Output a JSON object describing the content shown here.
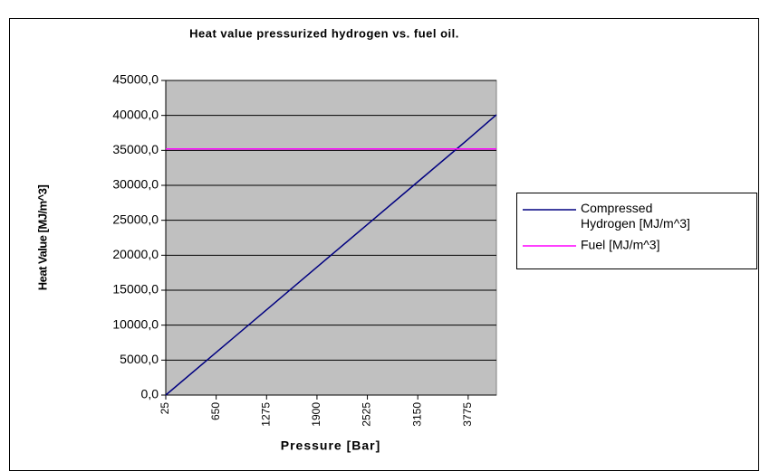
{
  "chart_data": {
    "type": "line",
    "title": "Heat value pressurized hydrogen vs. fuel oil.",
    "xlabel": "Pressure [Bar]",
    "ylabel": "Heat Value [MJ/m^3]",
    "x": [
      25,
      650,
      1275,
      1900,
      2525,
      3150,
      3775,
      4125
    ],
    "series": [
      {
        "name": "Compressed Hydrogen [MJ/m^3]",
        "color": "#000080",
        "values": [
          0,
          6100,
          12200,
          18300,
          24400,
          30500,
          36600,
          40100
        ]
      },
      {
        "name": "Fuel [MJ/m^3]",
        "color": "#ff00ff",
        "values": [
          35200,
          35200,
          35200,
          35200,
          35200,
          35200,
          35200,
          35200
        ]
      }
    ],
    "xlim": [
      25,
      4125
    ],
    "xticks": [
      25,
      650,
      1275,
      1900,
      2525,
      3150,
      3775
    ],
    "ylim": [
      0,
      45000
    ],
    "yticks": [
      {
        "value": 0,
        "label": "0,0"
      },
      {
        "value": 5000,
        "label": "5000,0"
      },
      {
        "value": 10000,
        "label": "10000,0"
      },
      {
        "value": 15000,
        "label": "15000,0"
      },
      {
        "value": 20000,
        "label": "20000,0"
      },
      {
        "value": 25000,
        "label": "25000,0"
      },
      {
        "value": 30000,
        "label": "30000,0"
      },
      {
        "value": 35000,
        "label": "35000,0"
      },
      {
        "value": 40000,
        "label": "40000,0"
      },
      {
        "value": 45000,
        "label": "45000,0"
      }
    ],
    "grid": true,
    "plot_background": "#c0c0c0",
    "legend": "right"
  }
}
